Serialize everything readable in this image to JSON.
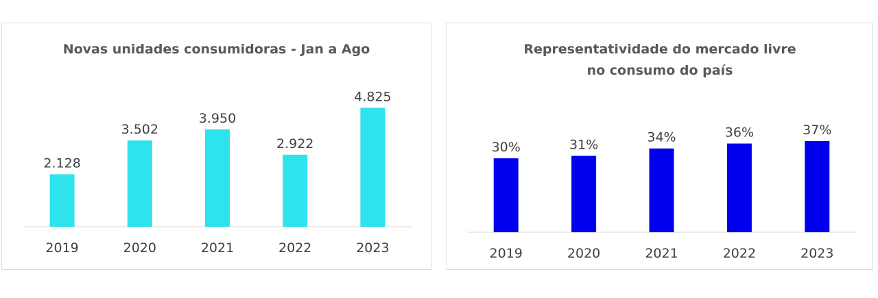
{
  "chart_data": [
    {
      "type": "bar",
      "title": "Novas unidades consumidoras - Jan a Ago",
      "categories": [
        "2019",
        "2020",
        "2021",
        "2022",
        "2023"
      ],
      "values": [
        2128,
        3502,
        3950,
        2922,
        4825
      ],
      "data_labels": [
        "2.128",
        "3.502",
        "3.950",
        "2.922",
        "4.825"
      ],
      "ylim": [
        0,
        6000
      ],
      "color": "#2EE3EC",
      "grid": false,
      "legend": "none"
    },
    {
      "type": "bar",
      "title": "Representatividade do mercado livre no consumo do país",
      "categories": [
        "2019",
        "2020",
        "2021",
        "2022",
        "2023"
      ],
      "values": [
        30,
        31,
        34,
        36,
        37
      ],
      "data_labels": [
        "30%",
        "31%",
        "34%",
        "36%",
        "37%"
      ],
      "ylim": [
        0,
        57
      ],
      "color": "#0000EE",
      "grid": false,
      "legend": "none"
    }
  ]
}
